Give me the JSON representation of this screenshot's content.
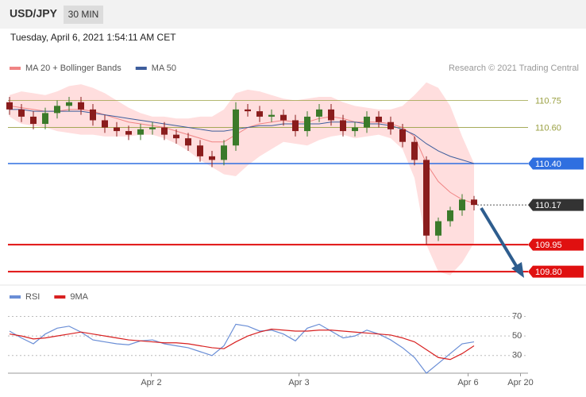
{
  "header": {
    "symbol": "USD/JPY",
    "interval": "30 MIN",
    "timestamp": "Tuesday, April 6, 2021 1:54:11 AM CET"
  },
  "chart_data": [
    {
      "type": "candlestick",
      "source": "Research © 2021 Trading Central",
      "up_color": "#3b7a2a",
      "down_color": "#8a1c1c",
      "open": [
        110.74,
        110.7,
        110.66,
        110.62,
        110.68,
        110.72,
        110.74,
        110.7,
        110.64,
        110.6,
        110.58,
        110.56,
        110.59,
        110.6,
        110.56,
        110.54,
        110.5,
        110.44,
        110.42,
        110.5,
        110.7,
        110.69,
        110.66,
        110.67,
        110.64,
        110.58,
        110.66,
        110.7,
        110.64,
        110.58,
        110.6,
        110.66,
        110.63,
        110.59,
        110.52,
        110.42,
        110.0,
        110.08,
        110.14,
        110.2
      ],
      "high": [
        110.77,
        110.73,
        110.69,
        110.71,
        110.75,
        110.77,
        110.77,
        110.73,
        110.67,
        110.63,
        110.61,
        110.62,
        110.63,
        110.63,
        110.59,
        110.57,
        110.53,
        110.47,
        110.53,
        110.74,
        110.73,
        110.72,
        110.7,
        110.7,
        110.67,
        110.69,
        110.73,
        110.73,
        110.67,
        110.63,
        110.69,
        110.69,
        110.66,
        110.62,
        110.55,
        110.44,
        110.1,
        110.16,
        110.23,
        110.22
      ],
      "low": [
        110.67,
        110.63,
        110.59,
        110.59,
        110.65,
        110.69,
        110.67,
        110.61,
        110.57,
        110.55,
        110.53,
        110.53,
        110.56,
        110.53,
        110.51,
        110.47,
        110.41,
        110.38,
        110.39,
        110.47,
        110.66,
        110.63,
        110.63,
        110.61,
        110.55,
        110.55,
        110.63,
        110.61,
        110.55,
        110.55,
        110.57,
        110.6,
        110.56,
        110.49,
        110.39,
        109.95,
        109.97,
        110.05,
        110.11,
        110.14
      ],
      "close": [
        110.7,
        110.66,
        110.62,
        110.68,
        110.72,
        110.74,
        110.7,
        110.64,
        110.6,
        110.58,
        110.56,
        110.59,
        110.6,
        110.56,
        110.54,
        110.5,
        110.44,
        110.42,
        110.5,
        110.7,
        110.69,
        110.66,
        110.67,
        110.64,
        110.58,
        110.66,
        110.7,
        110.64,
        110.58,
        110.6,
        110.66,
        110.63,
        110.59,
        110.52,
        110.42,
        110.0,
        110.08,
        110.14,
        110.2,
        110.17
      ],
      "series": [
        {
          "name": "MA 20 + Bollinger Bands",
          "color": "#f08484",
          "values": [
            110.72,
            110.71,
            110.7,
            110.69,
            110.69,
            110.7,
            110.7,
            110.69,
            110.67,
            110.65,
            110.63,
            110.62,
            110.61,
            110.6,
            110.58,
            110.56,
            110.54,
            110.52,
            110.52,
            110.56,
            110.6,
            110.62,
            110.63,
            110.64,
            110.63,
            110.63,
            110.65,
            110.66,
            110.65,
            110.63,
            110.63,
            110.63,
            110.62,
            110.6,
            110.55,
            110.4,
            110.3,
            110.24,
            110.2,
            110.18
          ],
          "band_color": "#ffdede",
          "upper": [
            110.78,
            110.8,
            110.79,
            110.78,
            110.8,
            110.83,
            110.84,
            110.82,
            110.79,
            110.75,
            110.71,
            110.68,
            110.66,
            110.66,
            110.65,
            110.65,
            110.66,
            110.66,
            110.7,
            110.79,
            110.81,
            110.8,
            110.78,
            110.76,
            110.75,
            110.76,
            110.77,
            110.77,
            110.74,
            110.72,
            110.71,
            110.7,
            110.7,
            110.72,
            110.78,
            110.85,
            110.82,
            110.72,
            110.55,
            110.4
          ],
          "lower": [
            110.66,
            110.62,
            110.61,
            110.6,
            110.58,
            110.57,
            110.56,
            110.56,
            110.55,
            110.55,
            110.55,
            110.56,
            110.56,
            110.54,
            110.51,
            110.47,
            110.42,
            110.38,
            110.34,
            110.33,
            110.39,
            110.44,
            110.48,
            110.52,
            110.51,
            110.5,
            110.53,
            110.55,
            110.56,
            110.54,
            110.55,
            110.56,
            110.54,
            110.48,
            110.32,
            109.95,
            109.8,
            109.78,
            109.85,
            109.96
          ]
        },
        {
          "name": "MA 50",
          "color": "#3d5d9c",
          "values": [
            110.7,
            110.7,
            110.69,
            110.69,
            110.69,
            110.69,
            110.69,
            110.68,
            110.67,
            110.66,
            110.65,
            110.64,
            110.63,
            110.62,
            110.61,
            110.6,
            110.59,
            110.58,
            110.58,
            110.59,
            110.6,
            110.61,
            110.61,
            110.62,
            110.62,
            110.62,
            110.62,
            110.63,
            110.63,
            110.63,
            110.62,
            110.62,
            110.61,
            110.59,
            110.56,
            110.51,
            110.47,
            110.44,
            110.42,
            110.4
          ]
        }
      ],
      "levels": [
        {
          "value": 110.75,
          "color": "#9aa042",
          "boxed": false
        },
        {
          "value": 110.6,
          "label": "110.60",
          "color": "#9aa042",
          "boxed": false
        },
        {
          "value": 110.4,
          "label": "110.40",
          "color": "#2f6fe0",
          "boxed": true
        },
        {
          "value": 110.17,
          "color": "#333333",
          "boxed": true,
          "current": true
        },
        {
          "value": 109.95,
          "color": "#e01010",
          "boxed": true
        },
        {
          "value": 109.8,
          "label": "109.80",
          "color": "#e01010",
          "boxed": true
        }
      ],
      "xlim": [
        0,
        43.2
      ],
      "ylim": [
        109.73,
        110.88
      ]
    },
    {
      "type": "line",
      "series": [
        {
          "name": "RSI",
          "color": "#6a8ed6",
          "values": [
            55,
            48,
            42,
            52,
            58,
            60,
            54,
            46,
            44,
            42,
            41,
            45,
            46,
            42,
            40,
            38,
            34,
            30,
            40,
            62,
            60,
            55,
            56,
            52,
            45,
            58,
            62,
            55,
            48,
            50,
            56,
            52,
            46,
            38,
            28,
            12,
            22,
            32,
            42,
            44
          ]
        },
        {
          "name": "9MA",
          "color": "#d82020",
          "values": [
            52,
            50,
            47,
            48,
            50,
            52,
            54,
            52,
            50,
            48,
            46,
            45,
            44,
            43,
            43,
            42,
            40,
            38,
            37,
            44,
            50,
            54,
            57,
            56,
            55,
            55,
            56,
            56,
            55,
            54,
            53,
            52,
            51,
            48,
            44,
            36,
            28,
            26,
            32,
            40
          ]
        }
      ],
      "xlim": [
        0,
        43.2
      ],
      "ylim": [
        12,
        85
      ],
      "yticks": [
        70,
        50,
        30
      ],
      "xticks": [
        {
          "value": 11.9,
          "label": "Apr 2"
        },
        {
          "value": 24.3,
          "label": "Apr 3"
        },
        {
          "value": 38.5,
          "label": "Apr 6"
        },
        {
          "value": 42.9,
          "label": "Apr 20"
        }
      ]
    }
  ]
}
